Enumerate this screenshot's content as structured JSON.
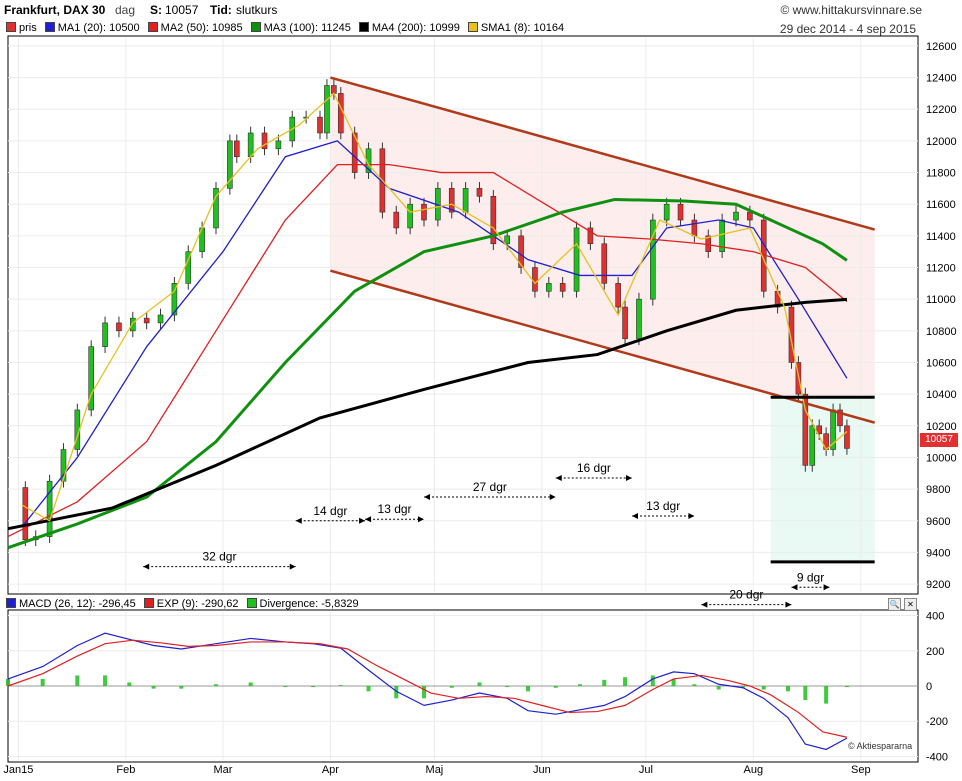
{
  "header": {
    "instrument": "Frankfurt, DAX 30",
    "period": "dag",
    "last_label": "S:",
    "last_value": "10057",
    "time_label": "Tid:",
    "time_value": "slutkurs",
    "site": "© www.hittakursvinnare.se",
    "date_range": "29 dec 2014 - 4 sep 2015",
    "year": "2015",
    "last_price_tag": "10057",
    "watermark": "© Aktiespararna"
  },
  "legend_price": [
    {
      "label": "pris",
      "color": "#e03030"
    },
    {
      "label": "MA1 (20): 10500",
      "color": "#2020d0"
    },
    {
      "label": "MA2 (50): 10985",
      "color": "#e02020"
    },
    {
      "label": "MA3 (100): 11245",
      "color": "#109010"
    },
    {
      "label": "MA4 (200): 10999",
      "color": "#000000"
    },
    {
      "label": "SMA1 (8): 10164",
      "color": "#e8c020"
    }
  ],
  "legend_macd": [
    {
      "label": "MACD (26, 12): -296,45",
      "color": "#2020d0"
    },
    {
      "label": "EXP (9): -290,62",
      "color": "#e02020"
    },
    {
      "label": "Divergence: -5,8329",
      "color": "#20c020"
    }
  ],
  "chart_data": [
    {
      "type": "candlestick",
      "title": "Frankfurt, DAX 30",
      "ylim": [
        9150,
        12650
      ],
      "y_ticks": [
        9200,
        9400,
        9600,
        9800,
        10000,
        10200,
        10400,
        10600,
        10800,
        11000,
        11200,
        11400,
        11600,
        11800,
        12000,
        12200,
        12400,
        12600
      ],
      "x_tick_labels": [
        "Jan15",
        "Feb",
        "Mar",
        "Apr",
        "Maj",
        "Jun",
        "Jul",
        "Aug",
        "Sep"
      ],
      "x_tick_days": [
        3,
        34,
        62,
        93,
        123,
        154,
        184,
        215,
        246
      ],
      "x_range_days": [
        0,
        252
      ],
      "close_points": [
        [
          0,
          9810
        ],
        [
          5,
          9480
        ],
        [
          8,
          9500
        ],
        [
          12,
          9850
        ],
        [
          16,
          10050
        ],
        [
          20,
          10300
        ],
        [
          24,
          10700
        ],
        [
          28,
          10850
        ],
        [
          32,
          10800
        ],
        [
          36,
          10880
        ],
        [
          40,
          10850
        ],
        [
          44,
          10900
        ],
        [
          48,
          11100
        ],
        [
          52,
          11300
        ],
        [
          56,
          11450
        ],
        [
          60,
          11700
        ],
        [
          64,
          12000
        ],
        [
          66,
          11900
        ],
        [
          70,
          12050
        ],
        [
          74,
          11950
        ],
        [
          78,
          12000
        ],
        [
          82,
          12150
        ],
        [
          86,
          12150
        ],
        [
          90,
          12050
        ],
        [
          92,
          12350
        ],
        [
          94,
          12300
        ],
        [
          96,
          12050
        ],
        [
          100,
          11800
        ],
        [
          104,
          11950
        ],
        [
          108,
          11550
        ],
        [
          112,
          11450
        ],
        [
          116,
          11600
        ],
        [
          120,
          11500
        ],
        [
          124,
          11700
        ],
        [
          128,
          11550
        ],
        [
          132,
          11700
        ],
        [
          136,
          11650
        ],
        [
          140,
          11350
        ],
        [
          144,
          11400
        ],
        [
          148,
          11200
        ],
        [
          152,
          11050
        ],
        [
          156,
          11100
        ],
        [
          160,
          11050
        ],
        [
          164,
          11450
        ],
        [
          168,
          11350
        ],
        [
          172,
          11100
        ],
        [
          176,
          10950
        ],
        [
          178,
          10750
        ],
        [
          182,
          11000
        ],
        [
          186,
          11500
        ],
        [
          190,
          11600
        ],
        [
          194,
          11500
        ],
        [
          198,
          11400
        ],
        [
          202,
          11300
        ],
        [
          206,
          11500
        ],
        [
          210,
          11550
        ],
        [
          214,
          11500
        ],
        [
          218,
          11050
        ],
        [
          222,
          10950
        ],
        [
          226,
          10600
        ],
        [
          228,
          10400
        ],
        [
          230,
          9950
        ],
        [
          232,
          10200
        ],
        [
          234,
          10150
        ],
        [
          236,
          10050
        ],
        [
          238,
          10300
        ],
        [
          240,
          10200
        ],
        [
          242,
          10057
        ]
      ],
      "series": [
        {
          "name": "MA1 (20)",
          "color": "#2020d0",
          "points": [
            [
              4,
              9560
            ],
            [
              20,
              10000
            ],
            [
              40,
              10700
            ],
            [
              62,
              11300
            ],
            [
              80,
              11900
            ],
            [
              95,
              12000
            ],
            [
              110,
              11700
            ],
            [
              130,
              11550
            ],
            [
              150,
              11250
            ],
            [
              165,
              11150
            ],
            [
              180,
              11150
            ],
            [
              190,
              11450
            ],
            [
              205,
              11500
            ],
            [
              215,
              11450
            ],
            [
              228,
              11000
            ],
            [
              235,
              10750
            ],
            [
              242,
              10500
            ]
          ]
        },
        {
          "name": "MA2 (50)",
          "color": "#e02020",
          "points": [
            [
              0,
              9500
            ],
            [
              20,
              9720
            ],
            [
              40,
              10100
            ],
            [
              60,
              10800
            ],
            [
              80,
              11500
            ],
            [
              95,
              11850
            ],
            [
              110,
              11850
            ],
            [
              125,
              11800
            ],
            [
              140,
              11800
            ],
            [
              155,
              11600
            ],
            [
              170,
              11400
            ],
            [
              185,
              11380
            ],
            [
              200,
              11350
            ],
            [
              215,
              11300
            ],
            [
              230,
              11200
            ],
            [
              242,
              10985
            ]
          ]
        },
        {
          "name": "MA3 (100)",
          "color": "#109010",
          "points": [
            [
              0,
              9430
            ],
            [
              20,
              9580
            ],
            [
              40,
              9750
            ],
            [
              60,
              10100
            ],
            [
              80,
              10600
            ],
            [
              100,
              11050
            ],
            [
              120,
              11300
            ],
            [
              140,
              11400
            ],
            [
              160,
              11550
            ],
            [
              175,
              11630
            ],
            [
              195,
              11620
            ],
            [
              210,
              11600
            ],
            [
              225,
              11450
            ],
            [
              235,
              11350
            ],
            [
              242,
              11245
            ]
          ]
        },
        {
          "name": "MA4 (200)",
          "color": "#000000",
          "points": [
            [
              0,
              9550
            ],
            [
              30,
              9680
            ],
            [
              60,
              9950
            ],
            [
              90,
              10250
            ],
            [
              120,
              10430
            ],
            [
              150,
              10600
            ],
            [
              170,
              10650
            ],
            [
              190,
              10800
            ],
            [
              210,
              10930
            ],
            [
              230,
              10980
            ],
            [
              242,
              10999
            ]
          ]
        },
        {
          "name": "SMA1 (8)",
          "color": "#e8c020",
          "points": [
            [
              4,
              9700
            ],
            [
              12,
              9600
            ],
            [
              24,
              10400
            ],
            [
              36,
              10850
            ],
            [
              48,
              11050
            ],
            [
              60,
              11650
            ],
            [
              72,
              11950
            ],
            [
              84,
              12100
            ],
            [
              94,
              12300
            ],
            [
              104,
              11850
            ],
            [
              116,
              11550
            ],
            [
              128,
              11600
            ],
            [
              140,
              11450
            ],
            [
              152,
              11100
            ],
            [
              164,
              11350
            ],
            [
              176,
              10900
            ],
            [
              188,
              11500
            ],
            [
              200,
              11380
            ],
            [
              214,
              11450
            ],
            [
              224,
              10950
            ],
            [
              230,
              10300
            ],
            [
              236,
              10050
            ],
            [
              242,
              10164
            ]
          ]
        }
      ],
      "trend_channel": {
        "upper": [
          [
            93,
            12400
          ],
          [
            250,
            11440
          ]
        ],
        "lower": [
          [
            93,
            11180
          ],
          [
            250,
            10220
          ]
        ]
      },
      "support_lines": [
        {
          "y": 10380,
          "x": [
            220,
            250
          ]
        },
        {
          "y": 9340,
          "x": [
            220,
            250
          ]
        }
      ],
      "annotations": [
        {
          "text": "32 dgr",
          "x": [
            39,
            83
          ],
          "y": 9310
        },
        {
          "text": "14 dgr",
          "x": [
            83,
            103
          ],
          "y": 9600
        },
        {
          "text": "13 dgr",
          "x": [
            103,
            120
          ],
          "y": 9610
        },
        {
          "text": "27 dgr",
          "x": [
            120,
            158
          ],
          "y": 9750
        },
        {
          "text": "16 dgr",
          "x": [
            158,
            180
          ],
          "y": 9870
        },
        {
          "text": "13 dgr",
          "x": [
            180,
            198
          ],
          "y": 9630
        },
        {
          "text": "20 dgr",
          "x": [
            200,
            226
          ],
          "y": 9070
        },
        {
          "text": "9 dgr",
          "x": [
            226,
            237
          ],
          "y": 9180
        }
      ]
    },
    {
      "type": "macd",
      "ylim": [
        -420,
        420
      ],
      "y_ticks": [
        -400,
        -200,
        0,
        200,
        400
      ],
      "series": [
        {
          "name": "MACD (26, 12)",
          "color": "#2020d0",
          "points": [
            [
              0,
              40
            ],
            [
              10,
              110
            ],
            [
              20,
              230
            ],
            [
              28,
              300
            ],
            [
              35,
              265
            ],
            [
              42,
              230
            ],
            [
              50,
              210
            ],
            [
              60,
              240
            ],
            [
              70,
              270
            ],
            [
              80,
              250
            ],
            [
              88,
              240
            ],
            [
              96,
              215
            ],
            [
              104,
              90
            ],
            [
              112,
              -30
            ],
            [
              120,
              -110
            ],
            [
              128,
              -80
            ],
            [
              136,
              -40
            ],
            [
              144,
              -70
            ],
            [
              150,
              -140
            ],
            [
              158,
              -160
            ],
            [
              165,
              -135
            ],
            [
              172,
              -110
            ],
            [
              178,
              -60
            ],
            [
              186,
              40
            ],
            [
              192,
              80
            ],
            [
              198,
              70
            ],
            [
              205,
              10
            ],
            [
              212,
              -10
            ],
            [
              218,
              -70
            ],
            [
              225,
              -180
            ],
            [
              230,
              -330
            ],
            [
              236,
              -360
            ],
            [
              242,
              -296
            ]
          ]
        },
        {
          "name": "EXP (9)",
          "color": "#e02020",
          "points": [
            [
              0,
              0
            ],
            [
              10,
              70
            ],
            [
              20,
              170
            ],
            [
              28,
              240
            ],
            [
              36,
              260
            ],
            [
              44,
              245
            ],
            [
              52,
              225
            ],
            [
              60,
              230
            ],
            [
              70,
              250
            ],
            [
              80,
              250
            ],
            [
              90,
              240
            ],
            [
              98,
              210
            ],
            [
              106,
              120
            ],
            [
              114,
              40
            ],
            [
              122,
              -40
            ],
            [
              130,
              -70
            ],
            [
              138,
              -60
            ],
            [
              146,
              -70
            ],
            [
              154,
              -110
            ],
            [
              162,
              -150
            ],
            [
              170,
              -145
            ],
            [
              178,
              -110
            ],
            [
              186,
              -20
            ],
            [
              192,
              40
            ],
            [
              200,
              60
            ],
            [
              208,
              30
            ],
            [
              214,
              0
            ],
            [
              220,
              -50
            ],
            [
              228,
              -150
            ],
            [
              235,
              -260
            ],
            [
              242,
              -291
            ]
          ]
        }
      ],
      "divergence_bars": [
        [
          0,
          40
        ],
        [
          10,
          40
        ],
        [
          20,
          60
        ],
        [
          28,
          60
        ],
        [
          35,
          20
        ],
        [
          42,
          -15
        ],
        [
          50,
          -15
        ],
        [
          60,
          10
        ],
        [
          70,
          20
        ],
        [
          80,
          0
        ],
        [
          88,
          0
        ],
        [
          96,
          5
        ],
        [
          104,
          -30
        ],
        [
          112,
          -70
        ],
        [
          120,
          -70
        ],
        [
          128,
          -10
        ],
        [
          136,
          20
        ],
        [
          144,
          0
        ],
        [
          150,
          -30
        ],
        [
          158,
          -10
        ],
        [
          165,
          10
        ],
        [
          172,
          35
        ],
        [
          178,
          50
        ],
        [
          186,
          60
        ],
        [
          192,
          40
        ],
        [
          198,
          10
        ],
        [
          205,
          -20
        ],
        [
          212,
          -10
        ],
        [
          218,
          -20
        ],
        [
          225,
          -30
        ],
        [
          230,
          -80
        ],
        [
          236,
          -100
        ],
        [
          242,
          -6
        ]
      ]
    }
  ]
}
